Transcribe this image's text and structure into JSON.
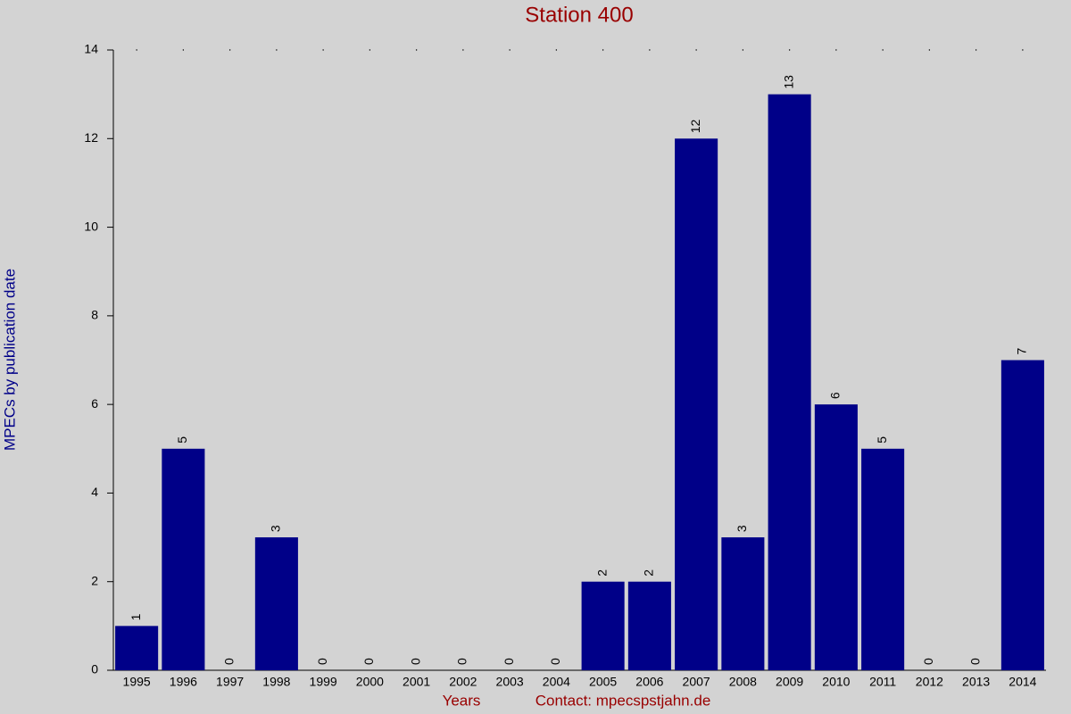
{
  "chart_data": {
    "type": "bar",
    "title": "Station 400",
    "x_label": "Years",
    "y_label": "MPECs by publication date",
    "annotation": "Contact: mpecspstjahn.de",
    "categories": [
      "1995",
      "1996",
      "1997",
      "1998",
      "1999",
      "2000",
      "2001",
      "2002",
      "2003",
      "2004",
      "2005",
      "2006",
      "2007",
      "2008",
      "2009",
      "2010",
      "2011",
      "2012",
      "2013",
      "2014"
    ],
    "values": [
      1,
      5,
      0,
      3,
      0,
      0,
      0,
      0,
      0,
      0,
      2,
      2,
      12,
      3,
      13,
      6,
      5,
      0,
      0,
      7
    ],
    "color": "#000088",
    "ylim": [
      0,
      14
    ],
    "yticks": [
      0,
      2,
      4,
      6,
      8,
      10,
      12,
      14
    ],
    "grid": false
  }
}
